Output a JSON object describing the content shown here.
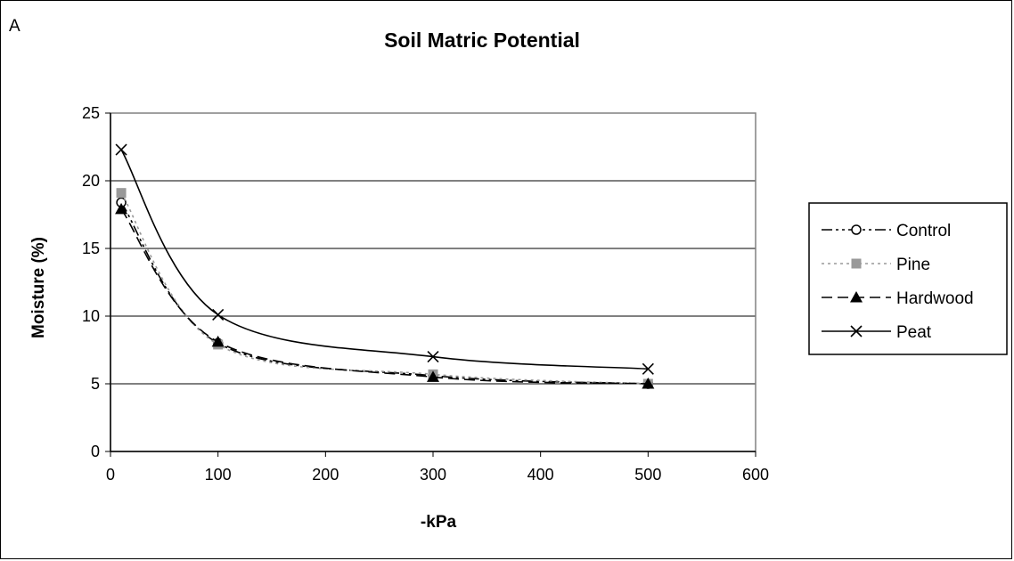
{
  "panel_label": "A",
  "chart_data": {
    "type": "line",
    "title": "Soil Matric Potential",
    "xlabel": "-kPa",
    "ylabel": "Moisture (%)",
    "xlim": [
      0,
      600
    ],
    "ylim": [
      0,
      25
    ],
    "xticks": [
      0,
      100,
      200,
      300,
      400,
      500,
      600
    ],
    "yticks": [
      0,
      5,
      10,
      15,
      20,
      25
    ],
    "grid": "horizontal",
    "legend": "right",
    "series": [
      {
        "name": "Control",
        "x": [
          10,
          100,
          300,
          500
        ],
        "y": [
          18.4,
          8.0,
          5.6,
          5.0
        ],
        "color": "#000000",
        "dash": "dash-dot-dot",
        "marker": "circle-open"
      },
      {
        "name": "Pine",
        "x": [
          10,
          100,
          300,
          500
        ],
        "y": [
          19.1,
          7.9,
          5.7,
          5.0
        ],
        "color": "#999999",
        "dash": "dotted",
        "marker": "square"
      },
      {
        "name": "Hardwood",
        "x": [
          10,
          100,
          300,
          500
        ],
        "y": [
          17.9,
          8.1,
          5.5,
          5.0
        ],
        "color": "#000000",
        "dash": "dashed",
        "marker": "triangle"
      },
      {
        "name": "Peat",
        "x": [
          10,
          100,
          300,
          500
        ],
        "y": [
          22.3,
          10.1,
          7.0,
          6.1
        ],
        "color": "#000000",
        "dash": "solid",
        "marker": "x"
      }
    ]
  }
}
